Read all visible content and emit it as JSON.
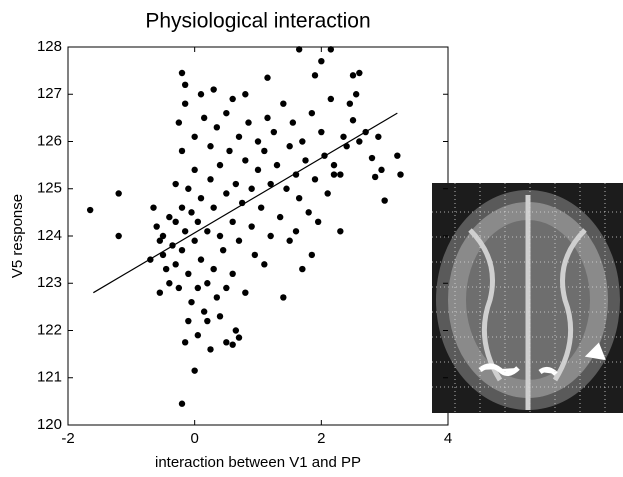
{
  "chart_data": {
    "type": "scatter",
    "title": "Physiological interaction",
    "x_label": "interaction between V1 and PP",
    "y_label": "V5 response",
    "xlim": [
      -2,
      4
    ],
    "ylim": [
      120,
      128
    ],
    "xticks": [
      -2,
      0,
      2,
      4
    ],
    "yticks": [
      120,
      121,
      122,
      123,
      124,
      125,
      126,
      127,
      128
    ],
    "color": "#000000",
    "x": [
      -1.65,
      -1.2,
      -1.2,
      -0.2,
      0,
      -0.15,
      0.6,
      0.7,
      0.65,
      0.5,
      1.4,
      -0.2,
      -0.15,
      1.65,
      2.15,
      1.15,
      2.6,
      2.5,
      3.2,
      3.25,
      2.95,
      2.8,
      2.85,
      3.0,
      2.2,
      2.3,
      2.45,
      2.5,
      2.55,
      -0.6,
      -0.55,
      -0.5,
      -0.5,
      -0.45,
      -0.4,
      -0.4,
      -0.35,
      -0.3,
      -0.3,
      -0.25,
      -0.2,
      -0.2,
      -0.15,
      -0.1,
      -0.1,
      -0.05,
      -0.05,
      0,
      0,
      0,
      0.05,
      0.05,
      0.1,
      0.1,
      0.15,
      0.15,
      0.2,
      0.2,
      0.25,
      0.25,
      0.3,
      0.3,
      0.35,
      0.35,
      0.4,
      0.4,
      0.45,
      0.5,
      0.5,
      0.5,
      0.55,
      0.6,
      0.6,
      0.65,
      0.7,
      0.7,
      0.75,
      0.8,
      0.8,
      0.85,
      0.9,
      0.9,
      0.95,
      1.0,
      1.0,
      1.05,
      1.1,
      1.1,
      1.15,
      1.2,
      1.2,
      1.25,
      1.3,
      1.35,
      1.4,
      1.45,
      1.5,
      1.5,
      1.55,
      1.6,
      1.65,
      1.7,
      1.75,
      1.8,
      1.85,
      1.9,
      1.95,
      2.0,
      2.05,
      2.1,
      2.15,
      2.2,
      2.35,
      2.4,
      2.6,
      2.7,
      2.9,
      -0.7,
      -0.65,
      -0.55,
      -0.3,
      -0.25,
      -0.2,
      -0.15,
      0.1,
      0.3,
      0.6,
      0.8,
      1.9,
      2.0,
      1.7,
      1.85,
      2.3,
      1.6,
      -0.1,
      0.05,
      0.2,
      0.25,
      0.4
    ],
    "values": [
      124.55,
      124.9,
      124.0,
      120.45,
      121.15,
      121.75,
      121.7,
      121.85,
      122.0,
      121.75,
      122.7,
      127.45,
      127.2,
      127.95,
      127.95,
      127.35,
      127.45,
      127.4,
      125.7,
      125.3,
      125.4,
      125.65,
      125.25,
      124.75,
      125.3,
      125.3,
      126.8,
      126.45,
      127.0,
      124.2,
      123.9,
      124.0,
      123.6,
      123.3,
      124.4,
      123.0,
      123.8,
      124.3,
      123.4,
      122.9,
      124.6,
      123.7,
      124.1,
      125.0,
      123.2,
      124.5,
      122.6,
      123.9,
      125.4,
      126.1,
      124.3,
      122.9,
      123.5,
      124.8,
      126.5,
      122.4,
      124.1,
      123.0,
      125.2,
      125.9,
      124.6,
      123.3,
      122.7,
      126.3,
      124.0,
      125.5,
      123.7,
      124.9,
      126.6,
      122.9,
      125.8,
      124.3,
      123.2,
      125.1,
      126.1,
      123.9,
      124.7,
      125.6,
      122.8,
      126.4,
      124.2,
      125.0,
      123.6,
      125.4,
      126.0,
      124.6,
      125.8,
      123.4,
      126.5,
      125.1,
      124.0,
      126.2,
      125.5,
      124.4,
      126.8,
      125.0,
      125.9,
      123.9,
      126.4,
      125.3,
      124.8,
      126.0,
      125.6,
      124.5,
      126.6,
      125.2,
      124.3,
      126.2,
      125.7,
      124.9,
      126.9,
      125.5,
      126.1,
      125.9,
      126.0,
      126.2,
      126.1,
      123.5,
      124.6,
      122.8,
      125.1,
      126.4,
      125.8,
      126.8,
      127.0,
      127.1,
      126.9,
      127.0,
      127.4,
      127.7,
      123.3,
      123.6,
      124.1,
      124.1,
      122.2,
      121.9,
      122.2,
      121.6,
      122.3
    ],
    "fit_line": {
      "x": [
        -1.6,
        3.2
      ],
      "y": [
        122.8,
        126.6
      ]
    }
  }
}
